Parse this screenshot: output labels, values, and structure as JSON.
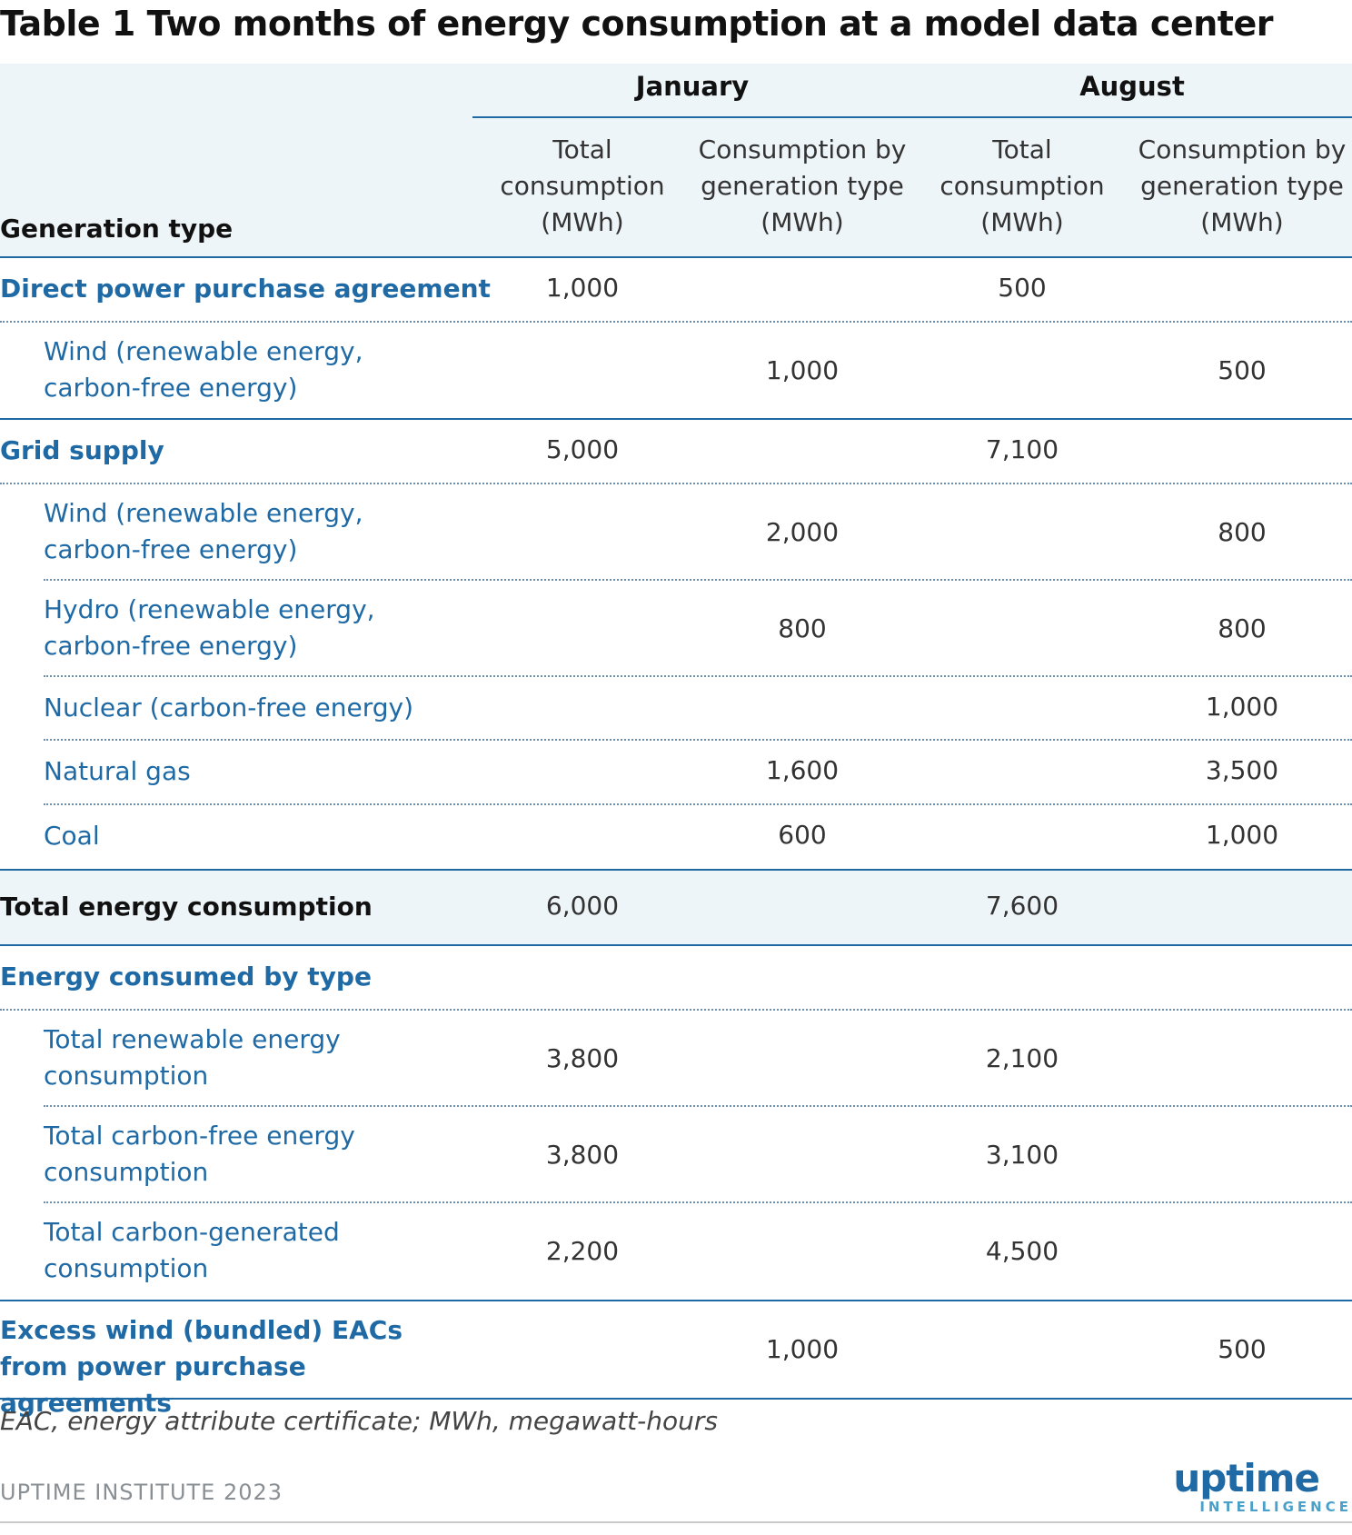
{
  "title": "Table 1 Two months of energy consumption at a model data center",
  "header": {
    "generation_type": "Generation type",
    "january": "January",
    "august": "August",
    "total_consumption": "Total consumption (MWh)",
    "consumption_by_type": "Consumption by generation type (MWh)"
  },
  "rows": [
    {
      "label": "Direct power purchase agreement",
      "jan_total": "1,000",
      "jan_type": "",
      "aug_total": "500",
      "aug_type": ""
    },
    {
      "label": "Wind (renewable energy, carbon-free energy)",
      "jan_total": "",
      "jan_type": "1,000",
      "aug_total": "",
      "aug_type": "500"
    },
    {
      "label": "Grid supply",
      "jan_total": "5,000",
      "jan_type": "",
      "aug_total": "7,100",
      "aug_type": ""
    },
    {
      "label": "Wind (renewable energy, carbon-free energy)",
      "jan_total": "",
      "jan_type": "2,000",
      "aug_total": "",
      "aug_type": "800"
    },
    {
      "label": "Hydro (renewable energy, carbon-free energy)",
      "jan_total": "",
      "jan_type": "800",
      "aug_total": "",
      "aug_type": "800"
    },
    {
      "label": "Nuclear (carbon-free energy)",
      "jan_total": "",
      "jan_type": "",
      "aug_total": "",
      "aug_type": "1,000"
    },
    {
      "label": "Natural gas",
      "jan_total": "",
      "jan_type": "1,600",
      "aug_total": "",
      "aug_type": "3,500"
    },
    {
      "label": "Coal",
      "jan_total": "",
      "jan_type": "600",
      "aug_total": "",
      "aug_type": "1,000"
    },
    {
      "label": "Total energy consumption",
      "jan_total": "6,000",
      "jan_type": "",
      "aug_total": "7,600",
      "aug_type": ""
    },
    {
      "label": "Energy consumed by type",
      "jan_total": "",
      "jan_type": "",
      "aug_total": "",
      "aug_type": ""
    },
    {
      "label": "Total renewable energy consumption",
      "jan_total": "3,800",
      "jan_type": "",
      "aug_total": "2,100",
      "aug_type": ""
    },
    {
      "label": "Total carbon-free energy consumption",
      "jan_total": "3,800",
      "jan_type": "",
      "aug_total": "3,100",
      "aug_type": ""
    },
    {
      "label": "Total carbon-generated consumption",
      "jan_total": "2,200",
      "jan_type": "",
      "aug_total": "4,500",
      "aug_type": ""
    },
    {
      "label": "Excess wind (bundled) EACs from power purchase agreements",
      "jan_total": "",
      "jan_type": "1,000",
      "aug_total": "",
      "aug_type": "500"
    }
  ],
  "footnote": "EAC, energy attribute certificate; MWh, megawatt-hours",
  "source": "UPTIME INSTITUTE 2023",
  "logo": {
    "main": "uptime",
    "sub": "INTELLIGENCE"
  },
  "colors": {
    "accent": "#1f6aa5",
    "header_bg": "#eef5f8"
  }
}
